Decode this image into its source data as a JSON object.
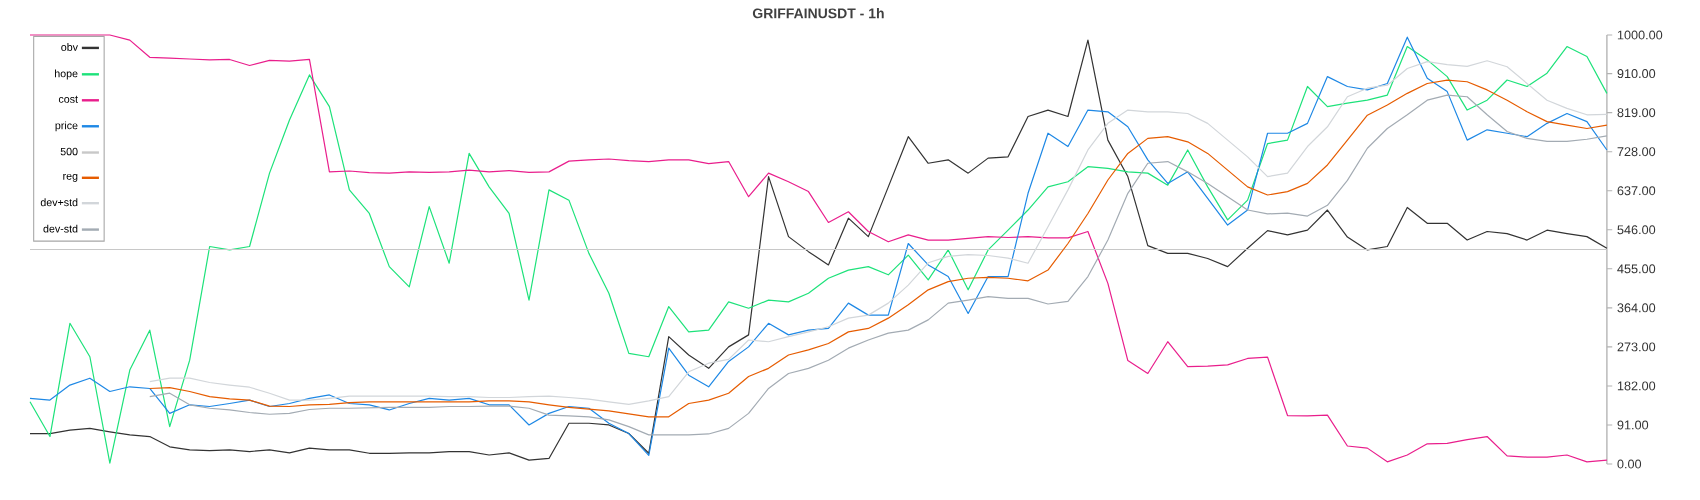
{
  "chart_data": {
    "type": "line",
    "title": "GRIFFAINUSDT - 1h",
    "categories": [
      null,
      null,
      null,
      null,
      null,
      null,
      null,
      null,
      null,
      null,
      null,
      null,
      null,
      null,
      null,
      null,
      null,
      null,
      null,
      null,
      null,
      null,
      null,
      null,
      null,
      null,
      null,
      null,
      null,
      null,
      null,
      null,
      null,
      null,
      null,
      null,
      null,
      null,
      null,
      null,
      null,
      null,
      null,
      null,
      null,
      null,
      null,
      null,
      null,
      null,
      null,
      null,
      null,
      null,
      null,
      null,
      null,
      null,
      null,
      null,
      null,
      null,
      null,
      null,
      null,
      null,
      null,
      null,
      null,
      null,
      null,
      null,
      null,
      null,
      null,
      null,
      null,
      null,
      null,
      null
    ],
    "ylim": [
      0,
      1000
    ],
    "yticks": [
      {
        "value": 0,
        "label": "0.00"
      },
      {
        "value": 91,
        "label": "91.00"
      },
      {
        "value": 182,
        "label": "182.00"
      },
      {
        "value": 273,
        "label": "273.00"
      },
      {
        "value": 364,
        "label": "364.00"
      },
      {
        "value": 455,
        "label": "455.00"
      },
      {
        "value": 546,
        "label": "546.00"
      },
      {
        "value": 637,
        "label": "637.00"
      },
      {
        "value": 728,
        "label": "728.00"
      },
      {
        "value": 819,
        "label": "819.00"
      },
      {
        "value": 910,
        "label": "910.00"
      },
      {
        "value": 1000,
        "label": "1000.00"
      }
    ],
    "tick_labels": "y",
    "legend": "top left",
    "series": [
      {
        "name": "obv",
        "color": "#333333",
        "values": [
          71,
          71,
          79,
          83,
          75,
          68,
          64,
          40,
          33,
          31,
          33,
          29,
          33,
          26,
          37,
          33,
          33,
          25,
          25,
          26,
          26,
          29,
          29,
          21,
          26,
          9,
          13,
          95,
          95,
          91,
          71,
          25,
          297,
          254,
          223,
          273,
          301,
          670,
          530,
          495,
          464,
          573,
          530,
          646,
          763,
          701,
          709,
          678,
          713,
          716,
          810,
          825,
          810,
          988,
          755,
          670,
          509,
          491,
          491,
          479,
          460,
          503,
          544,
          534,
          545,
          592,
          529,
          499,
          507,
          598,
          561,
          561,
          522,
          542,
          537,
          522,
          545,
          537,
          530,
          503
        ]
      },
      {
        "name": "hope",
        "color": "#1de27a",
        "values": [
          145,
          64,
          328,
          250,
          2,
          219,
          312,
          87,
          242,
          507,
          499,
          507,
          678,
          802,
          907,
          833,
          639,
          584,
          460,
          413,
          600,
          468,
          724,
          646,
          584,
          382,
          639,
          615,
          491,
          398,
          258,
          250,
          367,
          308,
          312,
          378,
          363,
          382,
          378,
          398,
          433,
          452,
          460,
          441,
          487,
          429,
          499,
          406,
          499,
          545,
          592,
          646,
          658,
          693,
          689,
          681,
          678,
          650,
          732,
          646,
          569,
          615,
          747,
          755,
          880,
          833,
          841,
          848,
          860,
          973,
          942,
          903,
          825,
          848,
          895,
          880,
          911,
          973,
          950,
          864
        ]
      },
      {
        "name": "cost",
        "color": "#e91e8c",
        "values": [
          1000,
          1000,
          1000,
          1000,
          1000,
          988,
          948,
          946,
          944,
          942,
          943,
          929,
          941,
          939,
          943,
          681,
          683,
          679,
          678,
          681,
          680,
          681,
          685,
          681,
          684,
          680,
          681,
          706,
          709,
          711,
          707,
          705,
          709,
          709,
          700,
          705,
          623,
          678,
          658,
          635,
          563,
          588,
          542,
          518,
          534,
          522,
          522,
          526,
          530,
          528,
          530,
          527,
          527,
          542,
          421,
          241,
          211,
          285,
          227,
          228,
          231,
          246,
          249,
          113,
          112,
          114,
          42,
          37,
          5,
          21,
          47,
          48,
          57,
          64,
          19,
          16,
          16,
          21,
          5,
          9
        ]
      },
      {
        "name": "price",
        "color": "#1e88e5",
        "values": [
          153,
          149,
          184,
          200,
          169,
          180,
          176,
          118,
          138,
          134,
          141,
          149,
          134,
          141,
          153,
          161,
          141,
          138,
          126,
          141,
          153,
          149,
          153,
          138,
          138,
          91,
          118,
          134,
          130,
          95,
          71,
          20,
          270,
          207,
          180,
          239,
          273,
          328,
          301,
          312,
          316,
          375,
          347,
          347,
          514,
          464,
          437,
          351,
          437,
          437,
          631,
          771,
          740,
          825,
          821,
          786,
          709,
          654,
          681,
          619,
          557,
          592,
          771,
          771,
          794,
          903,
          880,
          872,
          887,
          995,
          899,
          868,
          755,
          779,
          771,
          763,
          794,
          817,
          798,
          732
        ]
      },
      {
        "name": "500",
        "color": "#c8c8c8",
        "values": [
          500,
          500,
          500,
          500,
          500,
          500,
          500,
          500,
          500,
          500,
          500,
          500,
          500,
          500,
          500,
          500,
          500,
          500,
          500,
          500,
          500,
          500,
          500,
          500,
          500,
          500,
          500,
          500,
          500,
          500,
          500,
          500,
          500,
          500,
          500,
          500,
          500,
          500,
          500,
          500,
          500,
          500,
          500,
          500,
          500,
          500,
          500,
          500,
          500,
          500,
          500,
          500,
          500,
          500,
          500,
          500,
          500,
          500,
          500,
          500,
          500,
          500,
          500,
          500,
          500,
          500,
          500,
          500,
          500,
          500,
          500,
          500,
          500,
          500,
          500,
          500,
          500,
          500,
          500,
          500
        ]
      },
      {
        "name": "reg",
        "color": "#e65c00",
        "values": [
          null,
          null,
          null,
          null,
          null,
          null,
          176,
          178,
          169,
          157,
          152,
          149,
          135,
          134,
          138,
          139,
          143,
          145,
          145,
          145,
          145,
          145,
          145,
          147,
          147,
          145,
          138,
          132,
          128,
          124,
          117,
          110,
          110,
          141,
          149,
          165,
          204,
          223,
          254,
          266,
          281,
          308,
          316,
          340,
          371,
          406,
          425,
          433,
          435,
          433,
          427,
          452,
          514,
          584,
          662,
          724,
          759,
          763,
          751,
          724,
          685,
          646,
          627,
          635,
          654,
          697,
          755,
          813,
          837,
          864,
          887,
          895,
          891,
          872,
          848,
          821,
          798,
          790,
          782,
          790
        ]
      },
      {
        "name": "dev+std",
        "color": "#d2d6da",
        "values": [
          null,
          null,
          null,
          null,
          null,
          null,
          192,
          200,
          200,
          190,
          184,
          179,
          165,
          149,
          149,
          153,
          158,
          158,
          158,
          158,
          158,
          157,
          157,
          155,
          155,
          157,
          158,
          155,
          151,
          145,
          139,
          147,
          157,
          215,
          235,
          244,
          289,
          285,
          297,
          308,
          320,
          340,
          347,
          375,
          417,
          469,
          484,
          488,
          486,
          480,
          468,
          553,
          639,
          732,
          794,
          825,
          821,
          821,
          817,
          794,
          755,
          716,
          670,
          678,
          740,
          786,
          856,
          876,
          883,
          922,
          938,
          931,
          927,
          940,
          926,
          887,
          848,
          829,
          814,
          815
        ]
      },
      {
        "name": "dev-std",
        "color": "#a3abb3",
        "values": [
          null,
          null,
          null,
          null,
          null,
          null,
          157,
          165,
          138,
          130,
          126,
          120,
          116,
          118,
          127,
          130,
          130,
          131,
          132,
          132,
          132,
          134,
          134,
          135,
          135,
          130,
          114,
          112,
          110,
          103,
          87,
          68,
          68,
          68,
          70,
          83,
          118,
          176,
          211,
          223,
          242,
          270,
          289,
          305,
          312,
          336,
          375,
          382,
          390,
          386,
          386,
          373,
          379,
          437,
          522,
          631,
          701,
          705,
          681,
          654,
          623,
          592,
          583,
          585,
          578,
          603,
          661,
          736,
          782,
          814,
          848,
          860,
          856,
          814,
          775,
          759,
          752,
          752,
          757,
          765
        ]
      }
    ]
  }
}
